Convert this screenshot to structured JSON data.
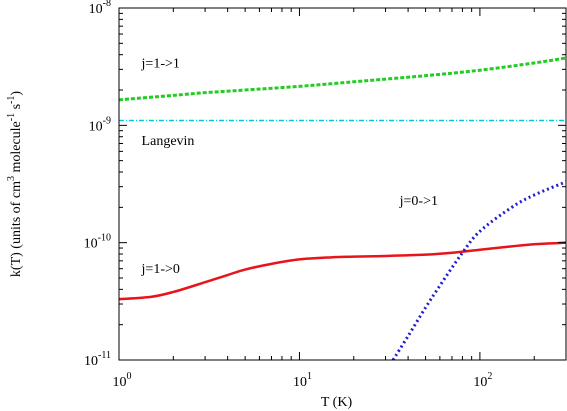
{
  "chart_data": {
    "type": "line",
    "xlabel": "T (K)",
    "ylabel": "k(T) (units of cm^3 molecule^-1 s^-1)",
    "xscale": "log",
    "yscale": "log",
    "xlim": [
      1,
      300
    ],
    "ylim": [
      1e-11,
      1e-08
    ],
    "grid": false,
    "legend": "none",
    "x_ticks": [
      {
        "value": 1,
        "base": "10",
        "exp": "0"
      },
      {
        "value": 10,
        "base": "10",
        "exp": "1"
      },
      {
        "value": 100,
        "base": "10",
        "exp": "2"
      }
    ],
    "y_ticks": [
      {
        "value": 1e-11,
        "base": "10",
        "exp": "-11"
      },
      {
        "value": 1e-10,
        "base": "10",
        "exp": "-10"
      },
      {
        "value": 1e-09,
        "base": "10",
        "exp": "-9"
      },
      {
        "value": 1e-08,
        "base": "10",
        "exp": "-8"
      }
    ],
    "series": [
      {
        "name": "j=1->1",
        "color": "#22cc22",
        "dash": "dash",
        "x": [
          1,
          2,
          3,
          5,
          10,
          20,
          50,
          100,
          200,
          300
        ],
        "y": [
          1.65e-09,
          1.8e-09,
          1.9e-09,
          2e-09,
          2.15e-09,
          2.35e-09,
          2.65e-09,
          2.95e-09,
          3.4e-09,
          3.75e-09
        ]
      },
      {
        "name": "Langevin",
        "color": "#00c8d8",
        "dash": "dashdot",
        "x": [
          1,
          300
        ],
        "y": [
          1.1e-09,
          1.1e-09
        ]
      },
      {
        "name": "j=1->0",
        "color": "#e8141b",
        "dash": "solid",
        "x": [
          1,
          1.5,
          2,
          3,
          4,
          5,
          7,
          10,
          15,
          20,
          30,
          50,
          70,
          100,
          150,
          200,
          300
        ],
        "y": [
          3.3e-11,
          3.45e-11,
          3.8e-11,
          4.6e-11,
          5.3e-11,
          5.9e-11,
          6.6e-11,
          7.2e-11,
          7.5e-11,
          7.6e-11,
          7.7e-11,
          7.9e-11,
          8.2e-11,
          8.7e-11,
          9.3e-11,
          9.7e-11,
          1e-10
        ]
      },
      {
        "name": "j=0->1",
        "color": "#1f1fcc",
        "dash": "dot",
        "x": [
          33,
          40,
          50,
          60,
          80,
          100,
          150,
          200,
          300
        ],
        "y": [
          1e-11,
          1.6e-11,
          2.8e-11,
          4.3e-11,
          8.2e-11,
          1.25e-10,
          2e-10,
          2.55e-10,
          3.3e-10
        ]
      }
    ],
    "annotations": [
      {
        "text": "j=1->1",
        "x": 1.3,
        "y": 3.1e-09
      },
      {
        "text": "Langevin",
        "x": 1.3,
        "y": 6.8e-10
      },
      {
        "text": "j=0->1",
        "x": 35,
        "y": 2.1e-10
      },
      {
        "text": "j=1->0",
        "x": 1.3,
        "y": 5.5e-11
      }
    ]
  }
}
